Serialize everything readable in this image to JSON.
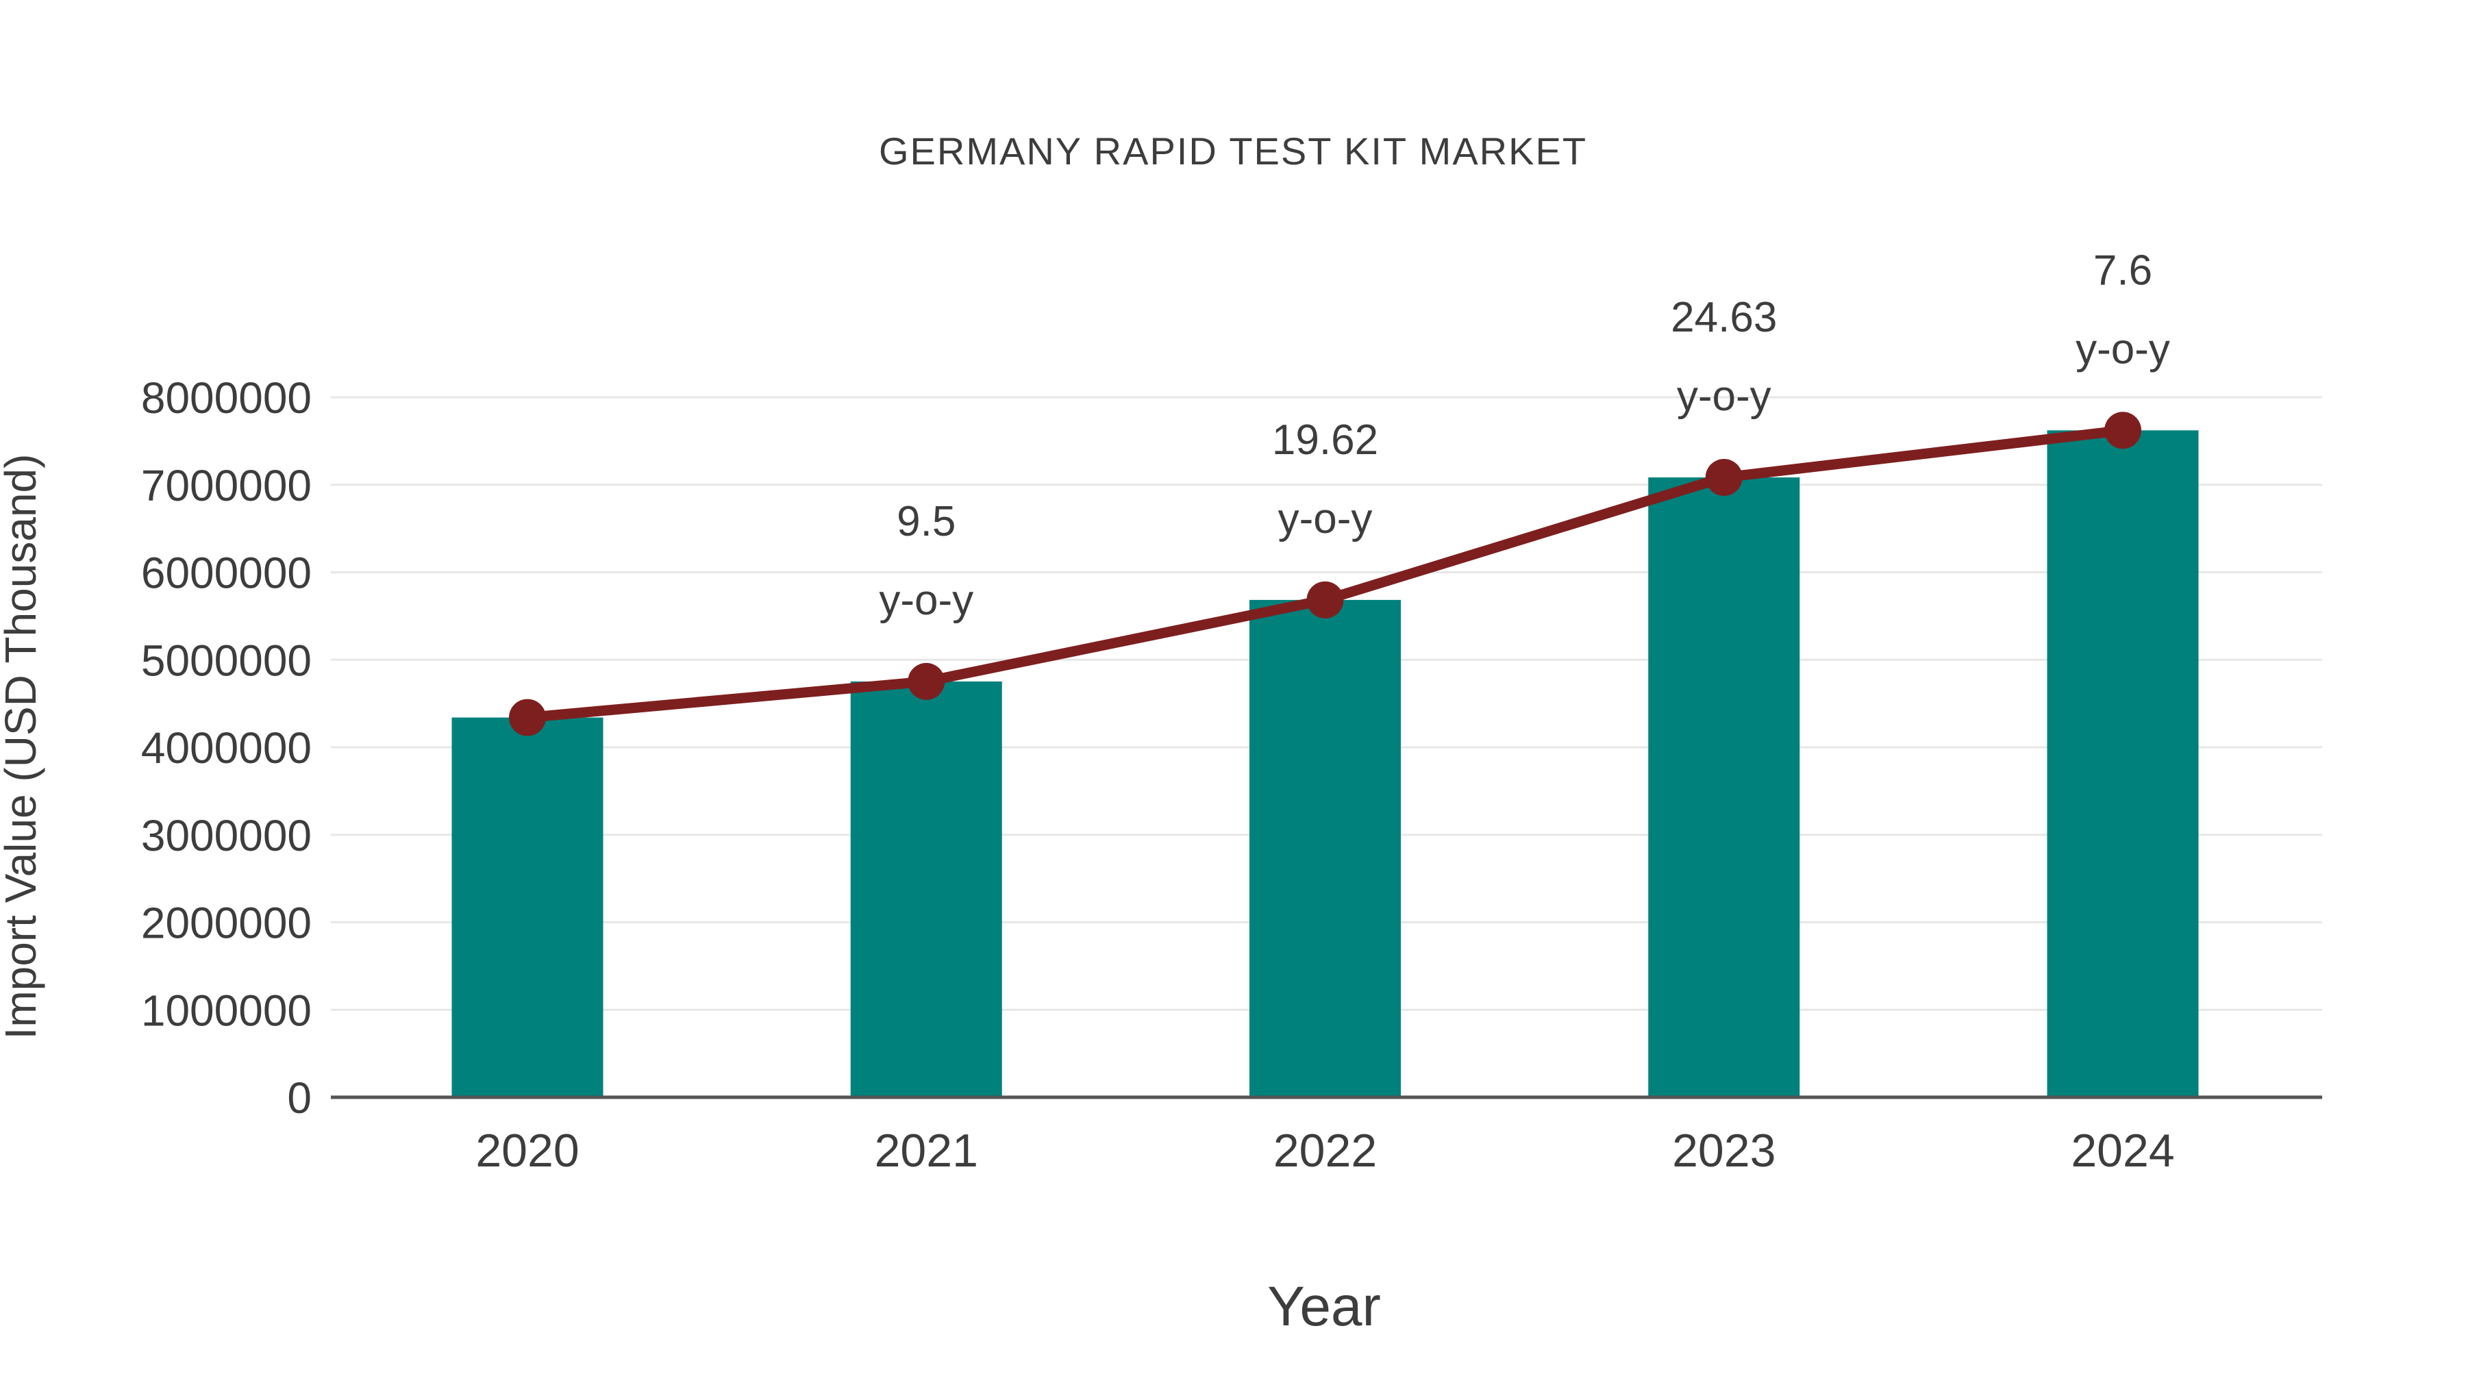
{
  "title": "GERMANY RAPID TEST KIT MARKET",
  "colors": {
    "bar": "#00817C",
    "line": "#7E1F1F",
    "grid": "#E7E7E7",
    "axis": "#555555",
    "text": "#3D3D3D"
  },
  "chart_data": {
    "type": "bar",
    "subtype": "bar-with-line-overlay",
    "title": "GERMANY RAPID TEST KIT MARKET",
    "xlabel": "Year",
    "ylabel": "Import Value (USD Thousand)",
    "categories": [
      "2020",
      "2021",
      "2022",
      "2023",
      "2024"
    ],
    "series": [
      {
        "name": "Import Value bars",
        "type": "bar",
        "color": "#00817C",
        "values": [
          4340000,
          4752000,
          5684000,
          7084000,
          7622000
        ]
      },
      {
        "name": "Import Value trend line",
        "type": "line",
        "color": "#7E1F1F",
        "values": [
          4340000,
          4752000,
          5684000,
          7084000,
          7622000
        ]
      }
    ],
    "annotations": [
      {
        "category": "2021",
        "value_line": "9.5",
        "suffix_line": "y-o-y"
      },
      {
        "category": "2022",
        "value_line": "19.62",
        "suffix_line": "y-o-y"
      },
      {
        "category": "2023",
        "value_line": "24.63",
        "suffix_line": "y-o-y"
      },
      {
        "category": "2024",
        "value_line": "7.6",
        "suffix_line": "y-o-y"
      }
    ],
    "ylim": [
      0,
      8000000
    ],
    "ytick_step": 1000000,
    "ytick_labels": [
      "0",
      "1000000",
      "2000000",
      "3000000",
      "4000000",
      "5000000",
      "6000000",
      "7000000",
      "8000000"
    ],
    "grid": true,
    "legend": "none"
  }
}
